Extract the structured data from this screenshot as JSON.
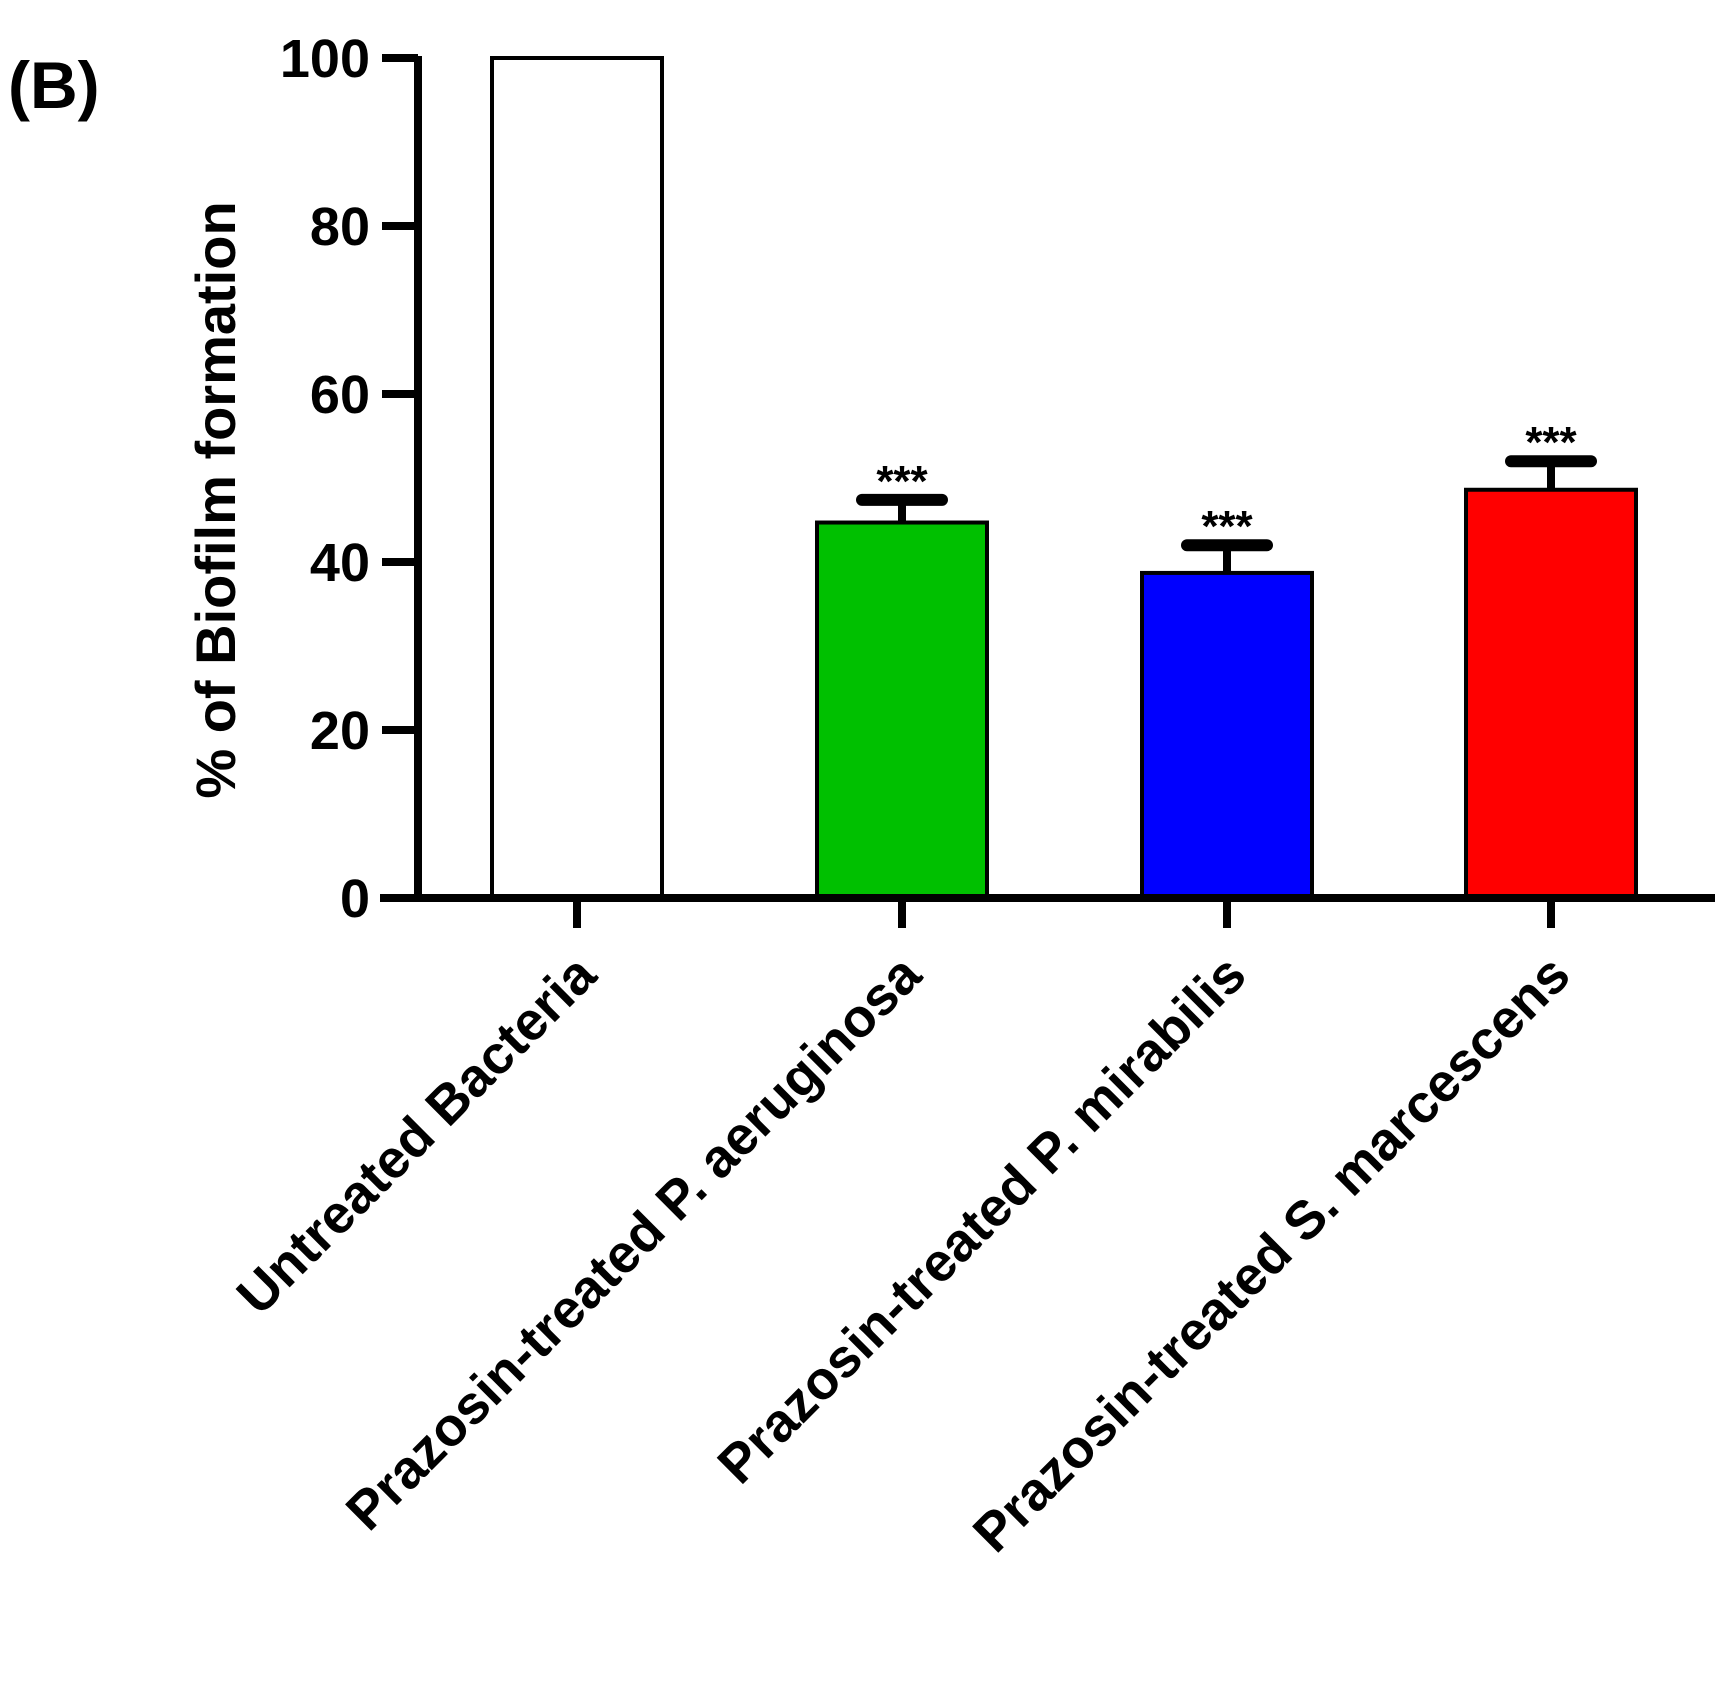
{
  "panel_label": "(B)",
  "chart_data": {
    "type": "bar",
    "title": "",
    "xlabel": "",
    "ylabel": "% of Biofilm formation",
    "ylim": [
      0,
      100
    ],
    "yticks": [
      0,
      20,
      40,
      60,
      80,
      100
    ],
    "grid": false,
    "categories": [
      "Untreated Bacteria",
      "Prazosin-treated P. aeruginosa",
      "Prazosin-treated P.  mirabilis",
      "Prazosin-treated S. marcescens"
    ],
    "values": [
      100,
      44.7,
      38.7,
      48.6
    ],
    "errors": [
      0,
      2.7,
      3.3,
      3.4
    ],
    "colors": [
      "#ffffff",
      "#00c000",
      "#0000ff",
      "#ff0000"
    ],
    "annotations": [
      "",
      "***",
      "***",
      "***"
    ]
  }
}
